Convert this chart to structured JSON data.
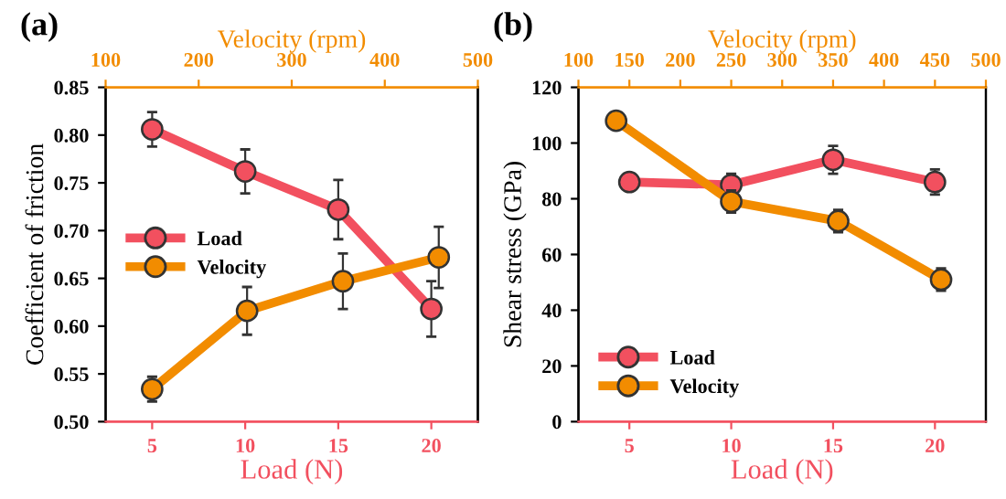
{
  "chart_data": [
    {
      "type": "line",
      "title": "(a)",
      "xlabel": "Load (N)",
      "x2label": "Velocity (rpm)",
      "ylabel": "Coefficient of friction",
      "xlim": [
        2.5,
        22.5
      ],
      "xticks": [
        5,
        10,
        15,
        20
      ],
      "x2lim": [
        100,
        500
      ],
      "x2ticks": [
        100,
        200,
        300,
        400,
        500
      ],
      "ylim": [
        0.5,
        0.85
      ],
      "yticks": [
        {
          "value": 0.5,
          "label": "0.50"
        },
        {
          "value": 0.55,
          "label": "0.55"
        },
        {
          "value": 0.6,
          "label": "0.60"
        },
        {
          "value": 0.65,
          "label": "0.65"
        },
        {
          "value": 0.7,
          "label": "0.70"
        },
        {
          "value": 0.75,
          "label": "0.75"
        },
        {
          "value": 0.8,
          "label": "0.80"
        },
        {
          "value": 0.85,
          "label": "0.85"
        }
      ],
      "marker": "circle",
      "line_style": "solid",
      "legend": "left",
      "grid": false,
      "series": [
        {
          "name": "Load",
          "color": "#f2505f",
          "x": [
            5,
            10,
            15,
            20
          ],
          "values": [
            0.806,
            0.762,
            0.722,
            0.618
          ],
          "errors": [
            0.018,
            0.023,
            0.031,
            0.029
          ]
        },
        {
          "name": "Velocity",
          "color": "#f28c00",
          "axis": "x2",
          "x": [
            150,
            252,
            355,
            458
          ],
          "values": [
            0.534,
            0.616,
            0.647,
            0.672
          ],
          "errors": [
            0.013,
            0.025,
            0.029,
            0.032
          ]
        }
      ]
    },
    {
      "type": "line",
      "title": "(b)",
      "xlabel": "Load (N)",
      "x2label": "Velocity (rpm)",
      "ylabel": "Shear stress (GPa)",
      "xlim": [
        2.5,
        22.5
      ],
      "xticks": [
        5,
        10,
        15,
        20
      ],
      "x2lim": [
        100,
        500
      ],
      "x2ticks": [
        100,
        150,
        200,
        250,
        300,
        350,
        400,
        450,
        500
      ],
      "ylim": [
        0,
        120
      ],
      "yticks": [
        0,
        20,
        40,
        60,
        80,
        100,
        120
      ],
      "marker": "circle",
      "line_style": "solid",
      "legend": "lower left",
      "grid": false,
      "series": [
        {
          "name": "Load",
          "color": "#f2505f",
          "x": [
            5,
            10,
            15,
            20
          ],
          "values": [
            86,
            85,
            94,
            86
          ],
          "errors": [
            3,
            4,
            5,
            4.5
          ]
        },
        {
          "name": "Velocity",
          "color": "#f28c00",
          "axis": "x2",
          "x": [
            137,
            250,
            355,
            456
          ],
          "values": [
            108,
            79,
            72,
            51
          ],
          "errors": [
            2,
            4,
            4,
            4
          ]
        }
      ]
    }
  ]
}
